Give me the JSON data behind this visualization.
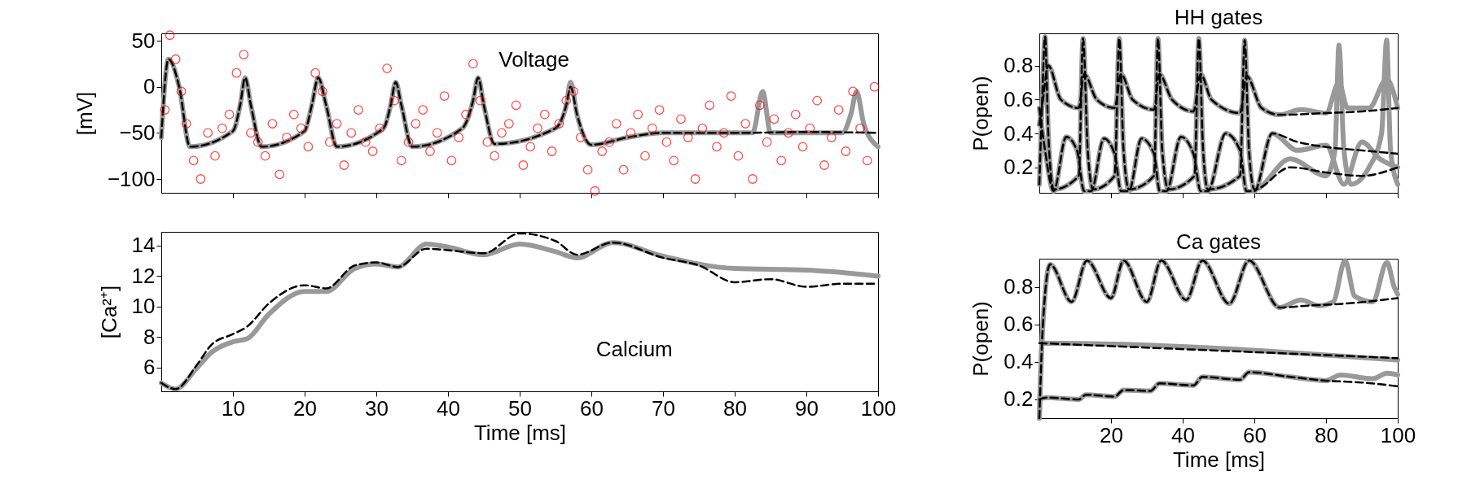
{
  "chart_data": [
    {
      "type": "line",
      "ylabel": "[mV]",
      "xlim": [
        0,
        100
      ],
      "xticks": [
        10,
        20,
        30,
        40,
        50,
        60,
        70,
        80,
        90,
        100
      ],
      "ylim": [
        -115,
        58
      ],
      "yticks": [
        -100,
        -50,
        0,
        50
      ],
      "tick_labels": "y",
      "annotations": [
        "Voltage"
      ],
      "series": [
        {
          "type": "line",
          "color": "#999999",
          "line_style": "solid",
          "x": [
            0,
            1,
            2.5,
            4,
            10,
            11,
            11.7,
            12.5,
            14,
            20,
            21,
            21.9,
            23,
            24.5,
            31,
            32,
            32.7,
            33.5,
            35,
            42,
            43.5,
            44.2,
            45,
            46.5,
            55,
            56.5,
            57.1,
            58,
            60,
            65,
            70,
            80,
            82.5,
            83.9,
            85,
            90,
            95,
            96.2,
            97,
            98,
            100
          ],
          "values": [
            -55,
            30,
            0,
            -65,
            -48,
            -20,
            10,
            -20,
            -65,
            -48,
            -20,
            10,
            -20,
            -65,
            -45,
            -20,
            5,
            -20,
            -65,
            -45,
            -15,
            10,
            -20,
            -62,
            -45,
            -20,
            5,
            -30,
            -63,
            -55,
            -50,
            -50,
            -50,
            -5,
            -50,
            -50,
            -50,
            -30,
            -5,
            -40,
            -65
          ]
        },
        {
          "type": "line",
          "color": "#000000",
          "line_style": "dashed",
          "x": [
            0,
            1,
            2.5,
            4,
            10,
            11,
            11.7,
            12.5,
            14,
            20,
            21,
            21.9,
            23,
            24.5,
            31,
            32,
            32.7,
            33.5,
            35,
            42,
            43.5,
            44.2,
            45,
            46.5,
            55,
            56.5,
            57.1,
            58,
            60,
            65,
            70,
            80,
            90,
            100
          ],
          "values": [
            -55,
            30,
            0,
            -65,
            -48,
            -20,
            10,
            -20,
            -65,
            -48,
            -20,
            10,
            -20,
            -65,
            -45,
            -20,
            5,
            -20,
            -65,
            -45,
            -15,
            10,
            -20,
            -62,
            -45,
            -20,
            0,
            -30,
            -63,
            -55,
            -50,
            -50,
            -49,
            -50
          ]
        },
        {
          "type": "scatter",
          "color": "#ff0000",
          "marker": "circle",
          "x": [
            0.5,
            1.2,
            2,
            2.8,
            3.5,
            4.5,
            5.5,
            6.5,
            7.5,
            8.5,
            9.5,
            10.5,
            11.5,
            12.5,
            13.5,
            14.5,
            15.5,
            16.5,
            17.5,
            18.5,
            19.5,
            20.5,
            21.5,
            22.5,
            23.5,
            24.5,
            25.5,
            26.5,
            27.5,
            28.5,
            29.5,
            30.5,
            31.5,
            32.5,
            33.5,
            34.5,
            35.5,
            36.5,
            37.5,
            38.5,
            39.5,
            40.5,
            41.5,
            42.5,
            43.5,
            44.5,
            45.5,
            46.5,
            47.5,
            48.5,
            49.5,
            50.5,
            51.5,
            52.5,
            53.5,
            54.5,
            55.5,
            56.5,
            57.5,
            58.5,
            59.5,
            60.5,
            61.5,
            62.5,
            63.5,
            64.5,
            65.5,
            66.5,
            67.5,
            68.5,
            69.5,
            70.5,
            71.5,
            72.5,
            73.5,
            74.5,
            75.5,
            76.5,
            77.5,
            78.5,
            79.5,
            80.5,
            81.5,
            82.5,
            83.5,
            84.5,
            85.5,
            86.5,
            87.5,
            88.5,
            89.5,
            90.5,
            91.5,
            92.5,
            93.5,
            94.5,
            95.5,
            96.5,
            97.5,
            98.5,
            99.5
          ],
          "values": [
            -25,
            56,
            30,
            -5,
            -40,
            -80,
            -100,
            -50,
            -75,
            -45,
            -30,
            15,
            35,
            -50,
            -60,
            -75,
            -40,
            -95,
            -55,
            -30,
            -45,
            -65,
            15,
            -5,
            -60,
            -40,
            -85,
            -50,
            -25,
            -60,
            -70,
            -45,
            20,
            -15,
            -80,
            -60,
            -40,
            -25,
            -70,
            -50,
            -10,
            -80,
            -55,
            -30,
            25,
            -15,
            -60,
            -75,
            -50,
            -40,
            -20,
            -85,
            -65,
            -45,
            -30,
            -70,
            -40,
            -15,
            -5,
            -55,
            -90,
            -113,
            -70,
            -60,
            -40,
            -90,
            -50,
            -30,
            -75,
            -45,
            -25,
            -60,
            -80,
            -35,
            -55,
            -100,
            -45,
            -20,
            -65,
            -50,
            -10,
            -75,
            -40,
            -100,
            -20,
            -60,
            -35,
            -80,
            -50,
            -30,
            -65,
            -45,
            -15,
            -85,
            -55,
            -25,
            -70,
            -5,
            -45,
            -80,
            0
          ]
        }
      ]
    },
    {
      "type": "line",
      "xlabel": "Time [ms]",
      "ylabel": "[Ca²⁺]",
      "xlim": [
        0,
        100
      ],
      "xticks": [
        10,
        20,
        30,
        40,
        50,
        60,
        70,
        80,
        90,
        100
      ],
      "ylim": [
        4.45,
        14.9
      ],
      "yticks": [
        6,
        8,
        10,
        12,
        14
      ],
      "annotations": [
        "Calcium"
      ],
      "series": [
        {
          "type": "line",
          "color": "#999999",
          "line_style": "solid",
          "x": [
            0,
            2,
            5,
            7,
            10,
            12,
            15,
            20,
            23,
            27,
            30,
            33,
            37,
            40,
            45,
            50,
            55,
            58,
            63,
            70,
            80,
            90,
            100
          ],
          "values": [
            5,
            4.6,
            6,
            7,
            7.7,
            7.9,
            9.5,
            11,
            11,
            12.5,
            12.8,
            12.6,
            14.1,
            13.9,
            13.4,
            14.1,
            13.6,
            13.2,
            14.2,
            13.3,
            12.5,
            12.4,
            12
          ]
        },
        {
          "type": "line",
          "color": "#000000",
          "line_style": "dashed",
          "x": [
            0,
            2,
            5,
            7,
            10,
            12,
            15,
            20,
            23,
            27,
            30,
            33,
            37,
            40,
            45,
            50,
            55,
            58,
            63,
            70,
            75,
            80,
            85,
            90,
            95,
            100
          ],
          "values": [
            5,
            4.6,
            6.2,
            7.5,
            8.2,
            8.7,
            10.2,
            11.4,
            11.2,
            12.7,
            12.9,
            12.6,
            13.8,
            13.7,
            13.5,
            14.8,
            14.3,
            13.4,
            14.2,
            13.2,
            12.7,
            11.6,
            11.8,
            11.3,
            11.5,
            11.5
          ]
        }
      ]
    },
    {
      "type": "line",
      "title": "HH gates",
      "ylabel": "P(open)",
      "xlim": [
        0,
        100
      ],
      "xticks": [
        20,
        40,
        60,
        80,
        100
      ],
      "ylim": [
        0.05,
        0.99
      ],
      "yticks": [
        0.2,
        0.4,
        0.6,
        0.8
      ],
      "tick_labels": "y",
      "series": [
        {
          "type": "line",
          "color": "#999999",
          "line_style": "solid",
          "x": [
            0,
            0.8,
            1.6,
            2.5,
            4,
            11,
            12.2,
            13.5,
            15,
            21,
            22.3,
            23.5,
            25,
            32,
            33.1,
            34.3,
            36,
            43.3,
            44.5,
            45.7,
            47,
            56,
            57.3,
            58.5,
            60,
            70,
            80,
            82.5,
            83.6,
            85,
            87,
            92,
            95.5,
            96.9,
            98,
            100
          ],
          "values": [
            0.1,
            0.6,
            0.97,
            0.4,
            0.07,
            0.15,
            0.96,
            0.3,
            0.07,
            0.15,
            0.96,
            0.3,
            0.07,
            0.15,
            0.96,
            0.3,
            0.07,
            0.15,
            0.96,
            0.3,
            0.07,
            0.15,
            0.95,
            0.3,
            0.07,
            0.25,
            0.15,
            0.3,
            0.92,
            0.3,
            0.1,
            0.2,
            0.4,
            0.95,
            0.3,
            0.1
          ]
        },
        {
          "type": "line",
          "color": "#999999",
          "line_style": "solid",
          "x": [
            0,
            1.6,
            4,
            7.5,
            10.5,
            12.5,
            14.5,
            18,
            21,
            22.8,
            25,
            28.5,
            32,
            33.6,
            35.5,
            39.5,
            43,
            45,
            47,
            52,
            56,
            57.8,
            60,
            65,
            72,
            80,
            85,
            90,
            95,
            100
          ],
          "values": [
            0.55,
            0.3,
            0.06,
            0.38,
            0.3,
            0.06,
            0.06,
            0.37,
            0.28,
            0.06,
            0.06,
            0.37,
            0.28,
            0.06,
            0.06,
            0.38,
            0.28,
            0.06,
            0.06,
            0.4,
            0.3,
            0.06,
            0.06,
            0.4,
            0.3,
            0.33,
            0.1,
            0.35,
            0.25,
            0.2
          ]
        },
        {
          "type": "line",
          "color": "#999999",
          "line_style": "solid",
          "x": [
            0,
            1,
            2.5,
            6,
            11,
            12.5,
            16,
            21,
            22.8,
            26,
            32,
            33.5,
            37,
            43,
            45,
            48,
            56,
            57.8,
            62,
            67,
            73,
            80,
            83.6,
            86,
            92,
            96.9,
            100
          ],
          "values": [
            0.45,
            0.6,
            0.8,
            0.6,
            0.55,
            0.75,
            0.6,
            0.55,
            0.75,
            0.6,
            0.54,
            0.75,
            0.6,
            0.53,
            0.75,
            0.6,
            0.52,
            0.74,
            0.55,
            0.51,
            0.54,
            0.52,
            0.7,
            0.55,
            0.55,
            0.72,
            0.55
          ]
        },
        {
          "type": "line",
          "color": "#000000",
          "line_style": "dashed",
          "x": [
            0,
            0.8,
            1.6,
            2.5,
            4,
            11,
            12.2,
            13.5,
            15,
            21,
            22.3,
            23.5,
            25,
            32,
            33.1,
            34.3,
            36,
            43.3,
            44.5,
            45.7,
            47,
            56,
            57.3,
            58.5,
            60,
            70,
            80,
            90,
            100
          ],
          "values": [
            0.1,
            0.6,
            0.97,
            0.4,
            0.07,
            0.15,
            0.96,
            0.3,
            0.07,
            0.15,
            0.96,
            0.3,
            0.07,
            0.15,
            0.96,
            0.3,
            0.07,
            0.15,
            0.96,
            0.3,
            0.07,
            0.15,
            0.95,
            0.3,
            0.07,
            0.2,
            0.17,
            0.15,
            0.2
          ]
        },
        {
          "type": "line",
          "color": "#000000",
          "line_style": "dashed",
          "x": [
            0,
            1.6,
            4,
            7.5,
            10.5,
            12.5,
            14.5,
            18,
            21,
            22.8,
            25,
            28.5,
            32,
            33.6,
            35.5,
            39.5,
            43,
            45,
            47,
            52,
            56,
            57.8,
            60,
            65,
            72,
            80,
            90,
            100
          ],
          "values": [
            0.55,
            0.3,
            0.06,
            0.38,
            0.3,
            0.06,
            0.06,
            0.37,
            0.28,
            0.06,
            0.06,
            0.37,
            0.28,
            0.06,
            0.06,
            0.38,
            0.28,
            0.06,
            0.06,
            0.4,
            0.3,
            0.06,
            0.06,
            0.4,
            0.35,
            0.32,
            0.3,
            0.28
          ]
        },
        {
          "type": "line",
          "color": "#000000",
          "line_style": "dashed",
          "x": [
            0,
            1,
            2.5,
            6,
            11,
            12.5,
            16,
            21,
            22.8,
            26,
            32,
            33.5,
            37,
            43,
            45,
            48,
            56,
            57.8,
            62,
            67,
            80,
            90,
            100
          ],
          "values": [
            0.45,
            0.6,
            0.8,
            0.6,
            0.55,
            0.75,
            0.6,
            0.55,
            0.75,
            0.6,
            0.54,
            0.75,
            0.6,
            0.53,
            0.75,
            0.6,
            0.52,
            0.74,
            0.55,
            0.51,
            0.52,
            0.53,
            0.55
          ]
        }
      ]
    },
    {
      "type": "line",
      "title": "Ca gates",
      "xlabel": "Time [ms]",
      "ylabel": "P(open)",
      "xlim": [
        0,
        100
      ],
      "xticks": [
        20,
        40,
        60,
        80,
        100
      ],
      "ylim": [
        0.1,
        0.95
      ],
      "yticks": [
        0.2,
        0.4,
        0.6,
        0.8
      ],
      "series": [
        {
          "type": "line",
          "color": "#999999",
          "line_style": "solid",
          "x": [
            0,
            1,
            3,
            9,
            13.3,
            20,
            23.5,
            30,
            34,
            41,
            45.5,
            53,
            58.5,
            67,
            73,
            78,
            82,
            85.3,
            88,
            93,
            97,
            99,
            100
          ],
          "values": [
            0.1,
            0.6,
            0.92,
            0.72,
            0.94,
            0.74,
            0.94,
            0.72,
            0.94,
            0.73,
            0.94,
            0.71,
            0.94,
            0.69,
            0.73,
            0.7,
            0.72,
            0.94,
            0.75,
            0.72,
            0.93,
            0.8,
            0.76
          ]
        },
        {
          "type": "line",
          "color": "#999999",
          "line_style": "solid",
          "x": [
            0,
            0.8,
            100
          ],
          "values": [
            0.1,
            0.5,
            0.41
          ]
        },
        {
          "type": "line",
          "color": "#999999",
          "line_style": "solid",
          "x": [
            0,
            2,
            11,
            13,
            21,
            23.5,
            31,
            33.5,
            43,
            45.5,
            56,
            58.5,
            70,
            80,
            84,
            93,
            97,
            100
          ],
          "values": [
            0.2,
            0.21,
            0.2,
            0.225,
            0.215,
            0.25,
            0.245,
            0.285,
            0.275,
            0.32,
            0.305,
            0.345,
            0.32,
            0.3,
            0.33,
            0.31,
            0.34,
            0.33
          ]
        },
        {
          "type": "line",
          "color": "#000000",
          "line_style": "dashed",
          "x": [
            0,
            1,
            3,
            9,
            13.3,
            20,
            23.5,
            30,
            34,
            41,
            45.5,
            53,
            58.5,
            67,
            75,
            85,
            100
          ],
          "values": [
            0.1,
            0.6,
            0.92,
            0.72,
            0.94,
            0.74,
            0.94,
            0.72,
            0.94,
            0.73,
            0.94,
            0.71,
            0.94,
            0.69,
            0.7,
            0.71,
            0.74
          ]
        },
        {
          "type": "line",
          "color": "#000000",
          "line_style": "dashed",
          "x": [
            0,
            100
          ],
          "values": [
            0.5,
            0.42
          ]
        },
        {
          "type": "line",
          "color": "#000000",
          "line_style": "dashed",
          "x": [
            0,
            2,
            11,
            13,
            21,
            23.5,
            31,
            33.5,
            43,
            45.5,
            56,
            58.5,
            70,
            80,
            90,
            100
          ],
          "values": [
            0.2,
            0.21,
            0.2,
            0.225,
            0.215,
            0.25,
            0.245,
            0.285,
            0.275,
            0.32,
            0.305,
            0.345,
            0.32,
            0.3,
            0.29,
            0.27
          ]
        }
      ]
    }
  ]
}
